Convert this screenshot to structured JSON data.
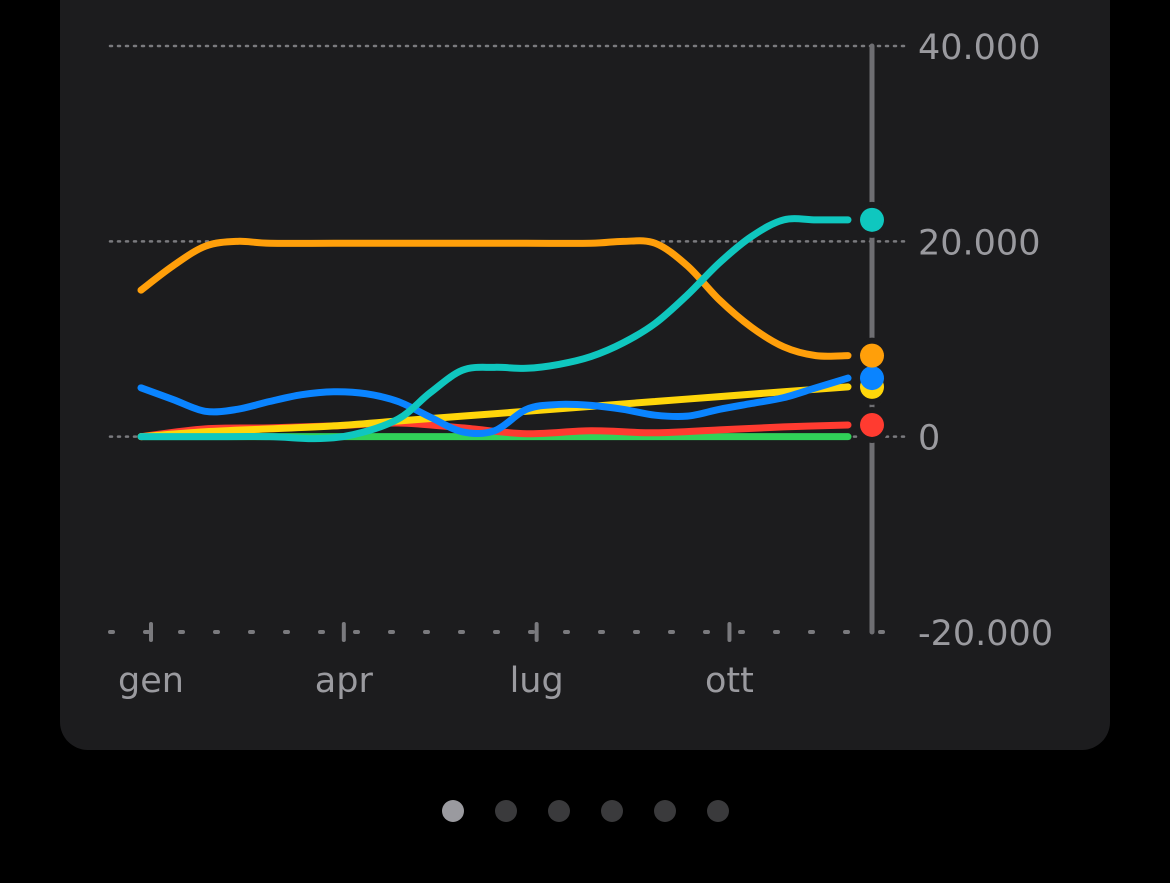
{
  "chart_data": {
    "type": "line",
    "x_labels": [
      "gen",
      "apr",
      "lug",
      "ott"
    ],
    "y_ticks": [
      "40.000",
      "20.000",
      "0",
      "-20.000"
    ],
    "ylim": [
      -20000,
      40000
    ],
    "grid": true,
    "series": [
      {
        "color": "#ff9f0a",
        "x": [
          0,
          0.5,
          1,
          1.5,
          2,
          3,
          4,
          5,
          6,
          7,
          7.5,
          8,
          8.5,
          9,
          9.5,
          10,
          10.5,
          11
        ],
        "values": [
          15000,
          17500,
          19500,
          20000,
          19800,
          19800,
          19800,
          19800,
          19800,
          19800,
          20000,
          19800,
          17500,
          14000,
          11200,
          9200,
          8300,
          8300
        ]
      },
      {
        "color": "#0fc7bf",
        "x": [
          0,
          1,
          2,
          2.7,
          3.3,
          4,
          4.5,
          5,
          5.5,
          6,
          6.5,
          7,
          7.5,
          8,
          8.5,
          9,
          9.5,
          10,
          10.5,
          11
        ],
        "values": [
          0,
          0,
          0,
          -200,
          200,
          1800,
          4500,
          6800,
          7100,
          7000,
          7400,
          8200,
          9600,
          11600,
          14500,
          17800,
          20500,
          22200,
          22200,
          22200
        ]
      },
      {
        "color": "#0a84ff",
        "x": [
          0,
          0.5,
          1,
          1.5,
          2,
          2.5,
          3,
          3.5,
          4,
          4.5,
          5,
          5.5,
          6,
          6.5,
          7,
          7.5,
          8,
          8.5,
          9,
          9.5,
          10,
          10.5,
          11
        ],
        "values": [
          5000,
          3800,
          2600,
          2800,
          3600,
          4300,
          4600,
          4400,
          3600,
          2000,
          500,
          600,
          2800,
          3300,
          3200,
          2800,
          2200,
          2100,
          2800,
          3400,
          4000,
          5000,
          6000
        ]
      },
      {
        "color": "#ffd60a",
        "x": [
          0,
          1,
          2,
          3,
          4,
          5,
          6,
          7,
          8,
          9,
          10,
          11
        ],
        "values": [
          0,
          500,
          800,
          1100,
          1600,
          2100,
          2600,
          3100,
          3600,
          4100,
          4600,
          5100
        ]
      },
      {
        "color": "#ff3b30",
        "x": [
          0,
          1,
          2,
          3,
          4,
          5,
          6,
          7,
          8,
          9,
          10,
          11
        ],
        "values": [
          0,
          800,
          900,
          1100,
          1400,
          900,
          300,
          600,
          400,
          700,
          1000,
          1200
        ]
      },
      {
        "color": "#30d158",
        "x": [
          0,
          11
        ],
        "values": [
          0,
          0
        ]
      }
    ],
    "end_markers": [
      {
        "color": "#ff3b30",
        "value": 1200
      },
      {
        "color": "#ffd60a",
        "value": 5100
      },
      {
        "color": "#0a84ff",
        "value": 6000
      },
      {
        "color": "#ff9f0a",
        "value": 8300
      },
      {
        "color": "#0fc7bf",
        "value": 22200
      }
    ]
  },
  "pager": {
    "count": 6,
    "active": 0
  }
}
